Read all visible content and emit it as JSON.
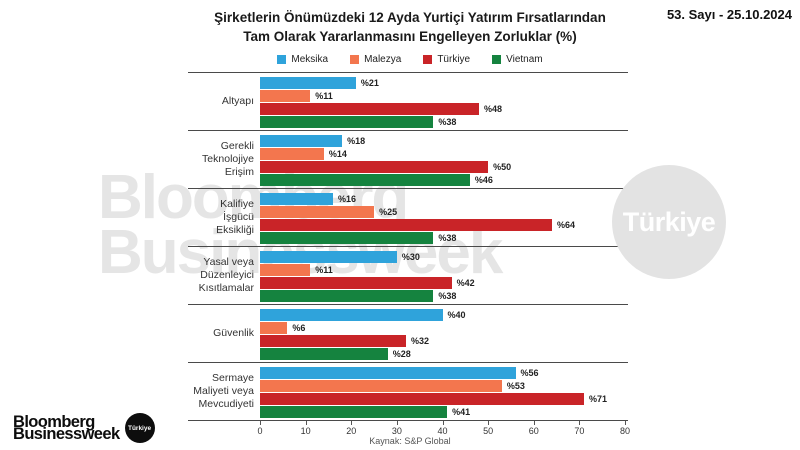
{
  "header": {
    "issue": "53. Sayı - 25.10.2024"
  },
  "title": {
    "line1": "Şirketlerin Önümüzdeki 12 Ayda Yurtiçi Yatırım Fırsatlarından",
    "line2": "Tam Olarak Yararlanmasını Engelleyen Zorluklar (%)"
  },
  "chart_data": {
    "type": "bar",
    "orientation": "horizontal",
    "categories": [
      "Altyapı",
      "Gerekli\nTeknolojiye\nErişim",
      "Kalifiye\nİşgücü\nEksikliği",
      "Yasal veya\nDüzenleyici\nKısıtlamalar",
      "Güvenlik",
      "Sermaye\nMaliyeti veya\nMevcudiyeti"
    ],
    "series": [
      {
        "name": "Meksika",
        "color": "#2FA3DB",
        "values": [
          21,
          18,
          16,
          30,
          40,
          56
        ]
      },
      {
        "name": "Malezya",
        "color": "#F3764E",
        "values": [
          11,
          14,
          25,
          11,
          6,
          53
        ]
      },
      {
        "name": "Türkiye",
        "color": "#C92428",
        "values": [
          48,
          50,
          64,
          42,
          32,
          71
        ]
      },
      {
        "name": "Vietnam",
        "color": "#15833F",
        "values": [
          38,
          46,
          38,
          38,
          28,
          41
        ]
      }
    ],
    "value_prefix": "%",
    "xlim": [
      0,
      80
    ],
    "x_ticks": [
      0,
      10,
      20,
      30,
      40,
      50,
      60,
      70,
      80
    ],
    "legend_position": "top",
    "grid": false,
    "source": "Kaynak: S&P Global"
  },
  "watermark": {
    "line1": "Bloomberg",
    "line2": "Businessweek",
    "circle_label": "Türkiye"
  },
  "logo": {
    "line1": "Bloomberg",
    "line2": "Businessweek",
    "badge": "Türkiye"
  }
}
